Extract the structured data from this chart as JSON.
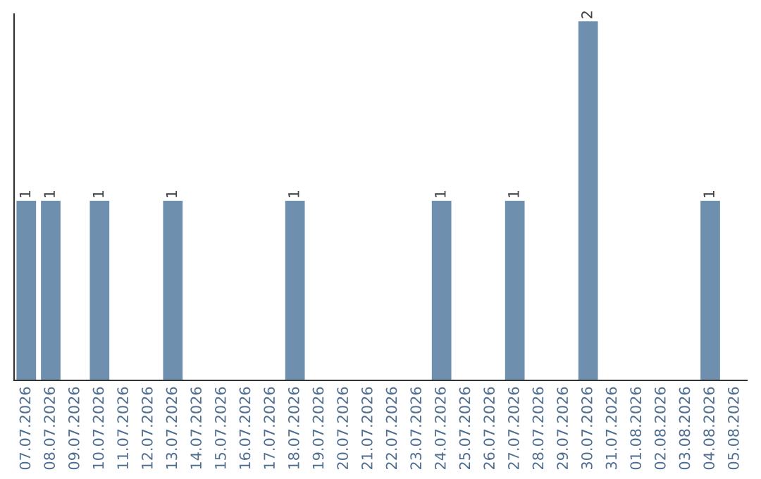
{
  "chart_data": {
    "type": "bar",
    "categories": [
      "07.07.2026",
      "08.07.2026",
      "09.07.2026",
      "10.07.2026",
      "11.07.2026",
      "12.07.2026",
      "13.07.2026",
      "14.07.2026",
      "15.07.2026",
      "16.07.2026",
      "17.07.2026",
      "18.07.2026",
      "19.07.2026",
      "20.07.2026",
      "21.07.2026",
      "22.07.2026",
      "23.07.2026",
      "24.07.2026",
      "25.07.2026",
      "26.07.2026",
      "27.07.2026",
      "28.07.2026",
      "29.07.2026",
      "30.07.2026",
      "31.07.2026",
      "01.08.2026",
      "02.08.2026",
      "03.08.2026",
      "04.08.2026",
      "05.08.2026"
    ],
    "values": [
      1,
      1,
      0,
      1,
      0,
      0,
      1,
      0,
      0,
      0,
      0,
      1,
      0,
      0,
      0,
      0,
      0,
      1,
      0,
      0,
      1,
      0,
      0,
      2,
      0,
      0,
      0,
      0,
      1,
      0
    ],
    "value_labels": [
      "1",
      "1",
      null,
      "1",
      null,
      null,
      "1",
      null,
      null,
      null,
      null,
      "1",
      null,
      null,
      null,
      null,
      null,
      "1",
      null,
      null,
      "1",
      null,
      null,
      "2",
      null,
      null,
      null,
      null,
      "1",
      null
    ],
    "color": "#6e8fad",
    "ylim": [
      0,
      2.04
    ],
    "tick_labels": "x",
    "grid": false,
    "legend": false
  }
}
